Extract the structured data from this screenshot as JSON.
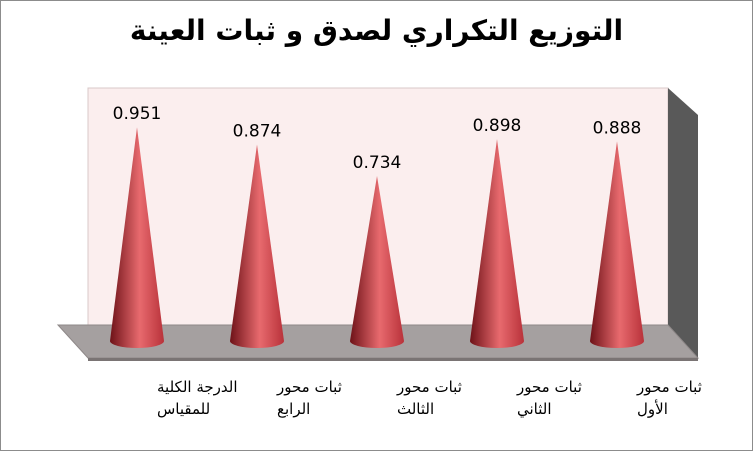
{
  "chart_data": {
    "type": "bar",
    "shape": "cone",
    "title": "التوزيع التكراري لصدق و ثبات العينة",
    "categories": [
      [
        "الدرجة الكلية",
        "للمقياس"
      ],
      [
        "ثبات محور",
        "الرابع"
      ],
      [
        "ثبات محور",
        "الثالث"
      ],
      [
        "ثبات محور",
        "الثاني"
      ],
      [
        "ثبات محور",
        "الأول"
      ]
    ],
    "values": [
      0.951,
      0.874,
      0.734,
      0.898,
      0.888
    ],
    "data_labels": [
      "0.951",
      "0.874",
      "0.734",
      "0.898",
      "0.888"
    ],
    "ylim": [
      0,
      1
    ],
    "gridlines": false,
    "legend": "none",
    "colors": {
      "cone": "#b8323a",
      "cone_light": "#e86a6e",
      "cone_dark": "#6e1218",
      "back_wall": "#fbeeee",
      "side_wall": "#595959",
      "floor": "#a5a0a0"
    }
  }
}
